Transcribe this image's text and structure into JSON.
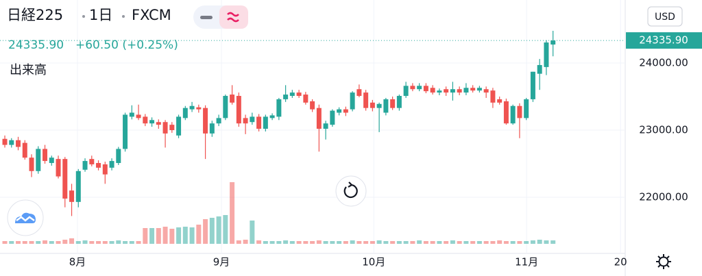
{
  "header": {
    "symbol": "日経225",
    "interval": "1日",
    "exchange": "FXCM",
    "last": "24335.90",
    "change": "+60.50 (+0.25%)",
    "volume_label": "出来高",
    "currency": "USD"
  },
  "chart_data": {
    "type": "candlestick",
    "open": [
      22870,
      22780,
      22850,
      22810,
      22590,
      22390,
      22720,
      22510,
      22570,
      22570,
      22100,
      21930,
      22410,
      22570,
      22510,
      22490,
      22440,
      22510,
      22720,
      23200,
      23230,
      23200,
      23100,
      23120,
      23120,
      23080,
      22920,
      23180,
      23310,
      23340,
      23330,
      22950,
      23100,
      23180,
      23530,
      23510,
      23180,
      23120,
      23200,
      23020,
      23180,
      23200,
      23460,
      23510,
      23560,
      23530,
      23430,
      23330,
      23020,
      23080,
      23260,
      23310,
      23310,
      23610,
      23560,
      23410,
      23330,
      23260,
      23460,
      23330,
      23510,
      23660,
      23610,
      23660,
      23630,
      23560,
      23610,
      23560,
      23610,
      23560,
      23630,
      23590,
      23610,
      23590,
      23460,
      23430,
      23100,
      23360,
      23180,
      23460,
      23840,
      23940,
      24275.4
    ],
    "high": [
      22920,
      22880,
      22900,
      22850,
      22640,
      22760,
      22780,
      22620,
      22620,
      22600,
      22200,
      22420,
      22580,
      22620,
      22550,
      22530,
      22580,
      22750,
      23260,
      23370,
      23380,
      23240,
      23190,
      23160,
      23150,
      23120,
      23230,
      23360,
      23420,
      23380,
      23370,
      23140,
      23230,
      23530,
      23670,
      23560,
      23230,
      23260,
      23240,
      23230,
      23250,
      23480,
      23670,
      23600,
      23600,
      23570,
      23460,
      23380,
      23140,
      23310,
      23340,
      23350,
      23580,
      23680,
      23600,
      23450,
      23410,
      23480,
      23500,
      23530,
      23720,
      23700,
      23700,
      23700,
      23670,
      23620,
      23650,
      23720,
      23650,
      23700,
      23670,
      23660,
      23650,
      23630,
      23500,
      23470,
      23380,
      23400,
      23480,
      23870,
      24060,
      24340,
      24480
    ],
    "low": [
      22740,
      22740,
      22700,
      22560,
      22300,
      22350,
      22500,
      22470,
      22280,
      21850,
      21720,
      21850,
      22380,
      22460,
      22400,
      22200,
      22400,
      22480,
      22680,
      23160,
      23150,
      23060,
      23050,
      23020,
      22740,
      22960,
      22880,
      23150,
      23270,
      23260,
      22570,
      22900,
      23060,
      23150,
      23380,
      23050,
      22940,
      23080,
      22980,
      22980,
      23150,
      23150,
      23420,
      23480,
      23480,
      23380,
      23270,
      22680,
      22860,
      23050,
      23220,
      23210,
      23280,
      23490,
      23290,
      23280,
      22970,
      23220,
      23300,
      23290,
      23480,
      23580,
      23580,
      23550,
      23530,
      23520,
      23510,
      23440,
      23520,
      23520,
      23560,
      23560,
      23480,
      23330,
      23380,
      23080,
      23080,
      22880,
      23150,
      23420,
      23600,
      23820,
      24100
    ],
    "close": [
      22780,
      22850,
      22750,
      22590,
      22390,
      22720,
      22540,
      22590,
      22310,
      21980,
      21930,
      22390,
      22540,
      22490,
      22440,
      22340,
      22540,
      22720,
      23230,
      23260,
      23180,
      23100,
      23150,
      23080,
      22950,
      23000,
      23200,
      23330,
      23360,
      23310,
      22950,
      23100,
      23180,
      23510,
      23410,
      23100,
      23100,
      23200,
      23020,
      23200,
      23220,
      23460,
      23530,
      23560,
      23510,
      23410,
      23310,
      23020,
      23100,
      23290,
      23310,
      23260,
      23560,
      23510,
      23330,
      23330,
      23390,
      23460,
      23330,
      23510,
      23660,
      23610,
      23660,
      23580,
      23560,
      23590,
      23560,
      23610,
      23560,
      23630,
      23590,
      23630,
      23560,
      23410,
      23410,
      23100,
      23360,
      23180,
      23460,
      23870,
      23970,
      24306,
      24335.9
    ],
    "volume": [
      4,
      4,
      4,
      4,
      4,
      4,
      5,
      4,
      4,
      6,
      8,
      4,
      5,
      4,
      4,
      4,
      4,
      5,
      4,
      4,
      4,
      23,
      23,
      23,
      25,
      22,
      24,
      25,
      24,
      28,
      36,
      38,
      40,
      42,
      90,
      5,
      6,
      34,
      5,
      4,
      4,
      4,
      5,
      4,
      4,
      4,
      4,
      5,
      4,
      4,
      4,
      4,
      5,
      4,
      4,
      4,
      5,
      4,
      4,
      4,
      4,
      4,
      5,
      4,
      4,
      4,
      4,
      5,
      4,
      4,
      4,
      4,
      4,
      4,
      5,
      4,
      4,
      4,
      4,
      5,
      6,
      5,
      5
    ],
    "up_color": "#26a69a",
    "down_color": "#ef5350",
    "xlim": [
      -0.72,
      92.8
    ],
    "xticks": [
      {
        "value": 10.87,
        "label": "8月"
      },
      {
        "value": 32.4,
        "label": "9月"
      },
      {
        "value": 55.2,
        "label": "10月"
      },
      {
        "value": 78.05,
        "label": "11月"
      },
      {
        "value": 92.1,
        "label": "20"
      }
    ],
    "ylim": [
      21163,
      24939
    ],
    "yticks": [
      {
        "value": 22000,
        "label": "22000.00"
      },
      {
        "value": 23000,
        "label": "23000.00"
      },
      {
        "value": 24000,
        "label": "24000.00"
      }
    ],
    "vlim": [
      0,
      100
    ],
    "grid": true
  }
}
